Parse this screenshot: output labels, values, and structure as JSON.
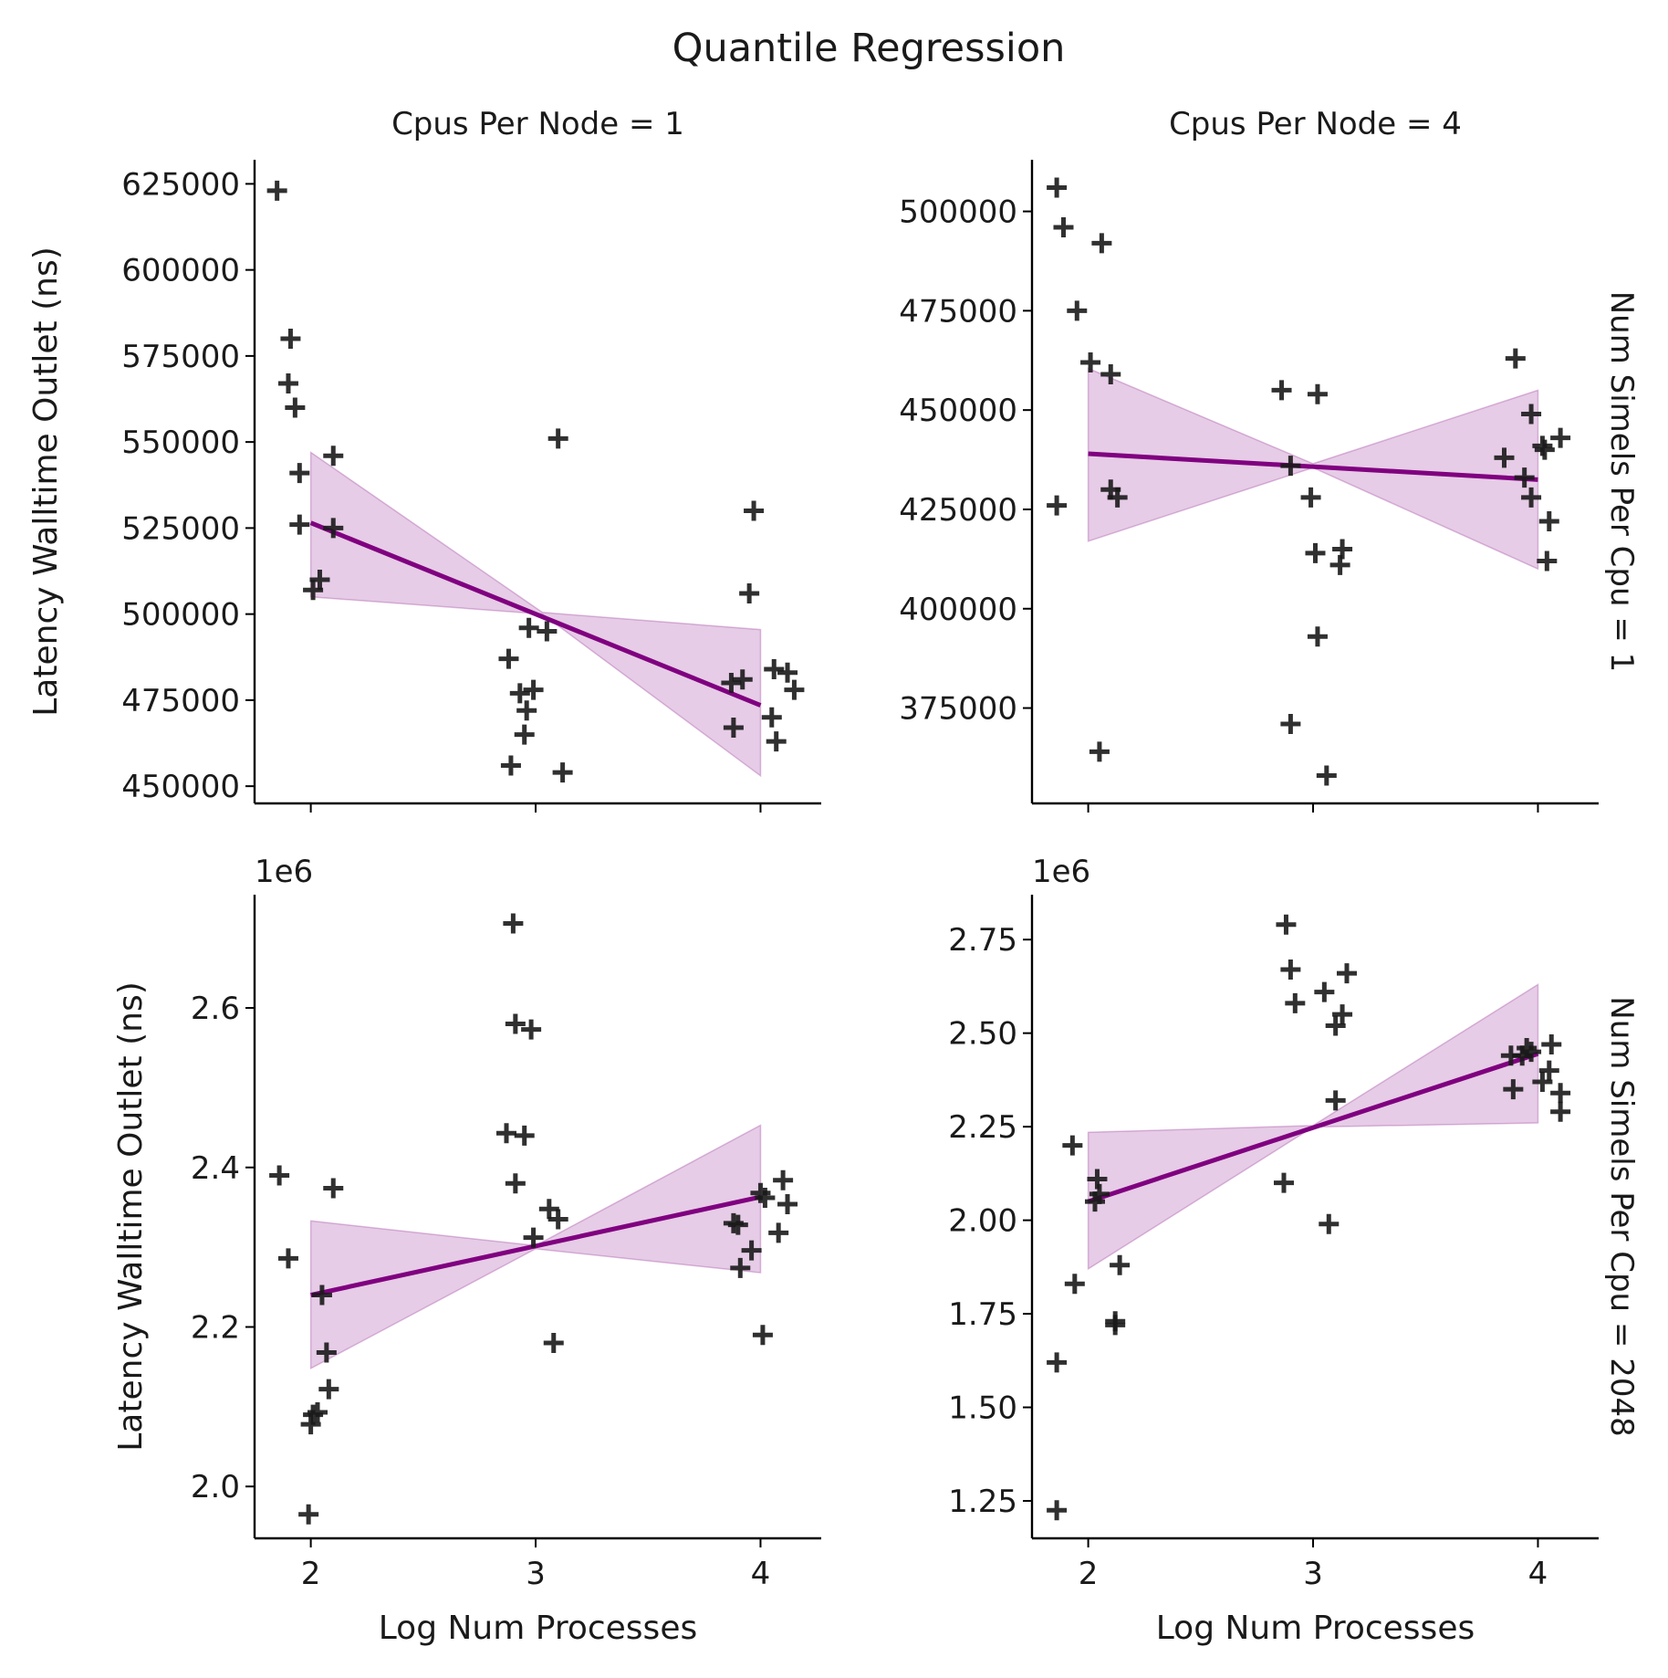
{
  "colors": {
    "fit": "#800080",
    "points": "#1a1a1a"
  },
  "chart_data": {
    "type": "scatter",
    "title": "Quantile Regression",
    "xlabel": "Log Num Processes",
    "ylabel": "Latency Walltime Outlet (ns)",
    "grid": false,
    "panels": [
      {
        "col_title": "Cpus Per Node = 1",
        "row_title": "Num Simels Per Cpu = 1",
        "xlim": [
          1.75,
          4.27
        ],
        "ylim": [
          445000,
          632000
        ],
        "xticks": [
          2,
          3,
          4
        ],
        "yticks": [
          450000,
          475000,
          500000,
          525000,
          550000,
          575000,
          600000,
          625000
        ],
        "ytick_labels": [
          "450000",
          "475000",
          "500000",
          "525000",
          "550000",
          "575000",
          "600000",
          "625000"
        ],
        "y_offset_label": "",
        "show_ylabel": true,
        "show_xlabel": false,
        "show_xticklabels": false,
        "points": [
          [
            1.85,
            623000
          ],
          [
            1.91,
            580000
          ],
          [
            1.9,
            567000
          ],
          [
            1.93,
            560000
          ],
          [
            1.95,
            541000
          ],
          [
            1.95,
            526000
          ],
          [
            2.01,
            507000
          ],
          [
            2.04,
            510000
          ],
          [
            2.1,
            546000
          ],
          [
            2.1,
            525000
          ],
          [
            2.88,
            487000
          ],
          [
            2.89,
            456000
          ],
          [
            2.93,
            477000
          ],
          [
            2.95,
            465000
          ],
          [
            2.96,
            472000
          ],
          [
            2.97,
            496000
          ],
          [
            2.99,
            478000
          ],
          [
            3.05,
            495000
          ],
          [
            3.1,
            551000
          ],
          [
            3.12,
            454000
          ],
          [
            3.87,
            480000
          ],
          [
            3.88,
            467000
          ],
          [
            3.92,
            481000
          ],
          [
            3.95,
            506000
          ],
          [
            3.97,
            530000
          ],
          [
            4.05,
            470000
          ],
          [
            4.06,
            484000
          ],
          [
            4.07,
            463000
          ],
          [
            4.12,
            483000
          ],
          [
            4.15,
            478000
          ]
        ],
        "fit": [
          [
            2,
            526500
          ],
          [
            4,
            473500
          ]
        ],
        "band": {
          "x": [
            2,
            3.03,
            4
          ],
          "upper": [
            547000,
            500500,
            495500
          ],
          "lower": [
            505000,
            500000,
            453000
          ]
        }
      },
      {
        "col_title": "Cpus Per Node = 4",
        "row_title": "Num Simels Per Cpu = 1",
        "xlim": [
          1.75,
          4.27
        ],
        "ylim": [
          351000,
          513000
        ],
        "xticks": [
          2,
          3,
          4
        ],
        "yticks": [
          375000,
          400000,
          425000,
          450000,
          475000,
          500000
        ],
        "ytick_labels": [
          "375000",
          "400000",
          "425000",
          "450000",
          "475000",
          "500000"
        ],
        "y_offset_label": "",
        "show_ylabel": false,
        "show_xlabel": false,
        "show_xticklabels": false,
        "points": [
          [
            1.86,
            506000
          ],
          [
            1.89,
            496000
          ],
          [
            1.86,
            426000
          ],
          [
            1.95,
            475000
          ],
          [
            2.01,
            462000
          ],
          [
            2.05,
            364000
          ],
          [
            2.06,
            492000
          ],
          [
            2.1,
            459000
          ],
          [
            2.1,
            430000
          ],
          [
            2.13,
            428000
          ],
          [
            2.86,
            455000
          ],
          [
            2.9,
            436000
          ],
          [
            2.9,
            371000
          ],
          [
            2.99,
            428000
          ],
          [
            3.01,
            414000
          ],
          [
            3.02,
            454000
          ],
          [
            3.02,
            393000
          ],
          [
            3.06,
            358000
          ],
          [
            3.12,
            411000
          ],
          [
            3.13,
            415000
          ],
          [
            3.85,
            438000
          ],
          [
            3.9,
            463000
          ],
          [
            3.94,
            433000
          ],
          [
            3.97,
            449000
          ],
          [
            3.97,
            428000
          ],
          [
            4.03,
            440000
          ],
          [
            4.02,
            441000
          ],
          [
            4.04,
            412000
          ],
          [
            4.05,
            422000
          ],
          [
            4.1,
            443000
          ]
        ],
        "fit": [
          [
            2,
            439000
          ],
          [
            4,
            432500
          ]
        ],
        "band": {
          "x": [
            2,
            3.0,
            4
          ],
          "upper": [
            460500,
            436500,
            455000
          ],
          "lower": [
            417000,
            435500,
            410000
          ]
        }
      },
      {
        "col_title": "",
        "row_title": "Num Simels Per Cpu = 2048",
        "xlim": [
          1.75,
          4.27
        ],
        "ylim": [
          1.935,
          2.742
        ],
        "xticks": [
          2,
          3,
          4
        ],
        "yticks": [
          2.0,
          2.2,
          2.4,
          2.6
        ],
        "ytick_labels": [
          "2.0",
          "2.2",
          "2.4",
          "2.6"
        ],
        "y_offset_label": "1e6",
        "show_ylabel": true,
        "show_xlabel": true,
        "show_xticklabels": true,
        "points": [
          [
            1.86,
            2.39
          ],
          [
            1.9,
            2.286
          ],
          [
            1.99,
            1.965
          ],
          [
            2.0,
            2.078
          ],
          [
            2.01,
            2.09
          ],
          [
            2.03,
            2.093
          ],
          [
            2.05,
            2.24
          ],
          [
            2.07,
            2.168
          ],
          [
            2.08,
            2.122
          ],
          [
            2.1,
            2.374
          ],
          [
            2.87,
            2.443
          ],
          [
            2.9,
            2.706
          ],
          [
            2.91,
            2.58
          ],
          [
            2.91,
            2.38
          ],
          [
            2.95,
            2.44
          ],
          [
            2.98,
            2.573
          ],
          [
            2.99,
            2.312
          ],
          [
            3.06,
            2.348
          ],
          [
            3.08,
            2.18
          ],
          [
            3.1,
            2.335
          ],
          [
            3.88,
            2.33
          ],
          [
            3.9,
            2.328
          ],
          [
            3.91,
            2.274
          ],
          [
            3.96,
            2.296
          ],
          [
            4.0,
            2.368
          ],
          [
            4.01,
            2.19
          ],
          [
            4.02,
            2.362
          ],
          [
            4.08,
            2.318
          ],
          [
            4.1,
            2.384
          ],
          [
            4.12,
            2.354
          ]
        ],
        "fit": [
          [
            2,
            2.24
          ],
          [
            4,
            2.363
          ]
        ],
        "band": {
          "x": [
            2,
            3.0,
            4
          ],
          "upper": [
            2.333,
            2.302,
            2.453
          ],
          "lower": [
            2.148,
            2.298,
            2.268
          ]
        }
      },
      {
        "col_title": "",
        "row_title": "Num Simels Per Cpu = 2048",
        "xlim": [
          1.75,
          4.27
        ],
        "ylim": [
          1.15,
          2.87
        ],
        "xticks": [
          2,
          3,
          4
        ],
        "yticks": [
          1.25,
          1.5,
          1.75,
          2.0,
          2.25,
          2.5,
          2.75
        ],
        "ytick_labels": [
          "1.25",
          "1.50",
          "1.75",
          "2.00",
          "2.25",
          "2.50",
          "2.75"
        ],
        "y_offset_label": "1e6",
        "show_ylabel": false,
        "show_xlabel": true,
        "show_xticklabels": true,
        "points": [
          [
            1.86,
            1.225
          ],
          [
            1.86,
            1.62
          ],
          [
            1.93,
            2.2
          ],
          [
            1.94,
            1.83
          ],
          [
            2.03,
            2.05
          ],
          [
            2.04,
            2.11
          ],
          [
            2.05,
            2.07
          ],
          [
            2.12,
            1.73
          ],
          [
            2.12,
            1.72
          ],
          [
            2.14,
            1.88
          ],
          [
            2.87,
            2.1
          ],
          [
            2.88,
            2.79
          ],
          [
            2.9,
            2.67
          ],
          [
            2.92,
            2.58
          ],
          [
            3.05,
            2.61
          ],
          [
            3.07,
            1.99
          ],
          [
            3.1,
            2.52
          ],
          [
            3.1,
            2.32
          ],
          [
            3.13,
            2.55
          ],
          [
            3.15,
            2.66
          ],
          [
            3.88,
            2.44
          ],
          [
            3.89,
            2.35
          ],
          [
            3.93,
            2.44
          ],
          [
            3.95,
            2.46
          ],
          [
            3.97,
            2.45
          ],
          [
            4.02,
            2.37
          ],
          [
            4.05,
            2.4
          ],
          [
            4.06,
            2.47
          ],
          [
            4.1,
            2.34
          ],
          [
            4.1,
            2.29
          ]
        ],
        "fit": [
          [
            2,
            2.05
          ],
          [
            4,
            2.445
          ]
        ],
        "band": {
          "x": [
            2,
            3.0,
            4
          ],
          "upper": [
            2.235,
            2.253,
            2.63
          ],
          "lower": [
            1.87,
            2.249,
            2.26
          ]
        }
      }
    ]
  }
}
